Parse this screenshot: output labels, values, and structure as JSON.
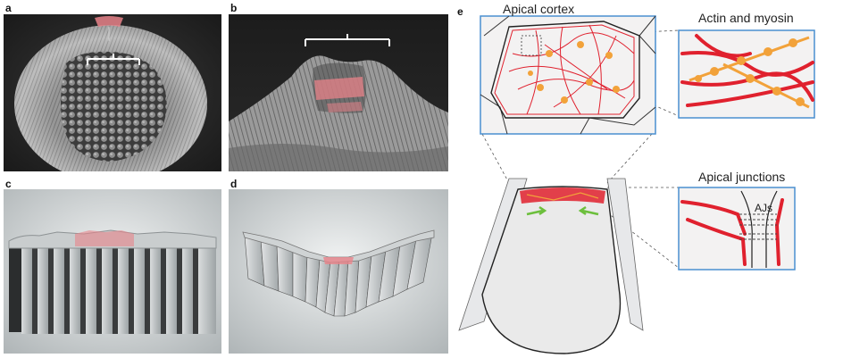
{
  "panels": {
    "a": {
      "letter": "a"
    },
    "b": {
      "letter": "b"
    },
    "c": {
      "letter": "c"
    },
    "d": {
      "letter": "d"
    },
    "e": {
      "letter": "e",
      "labels": {
        "apical_cortex": "Apical cortex",
        "actin_myosin": "Actin and myosin",
        "apical_junctions": "Apical junctions",
        "ajs": "AJs"
      }
    }
  },
  "colors": {
    "actin": "#e0212e",
    "myosin": "#f2a23a",
    "highlight_pink": "#e8838a",
    "inset_border": "#4a8fd0",
    "arrow_green": "#6cbf3c",
    "sem_dark": "#2b2b2b"
  }
}
